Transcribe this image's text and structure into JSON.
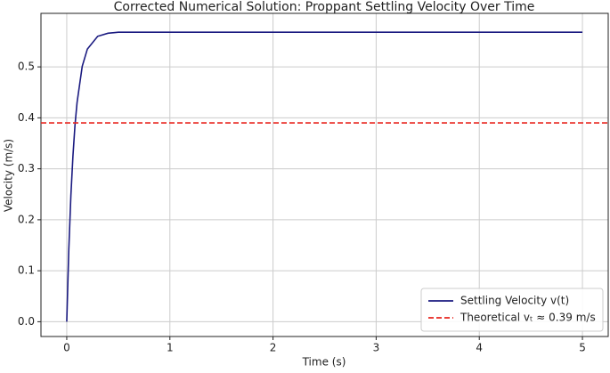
{
  "chart_data": {
    "type": "line",
    "title": "Corrected Numerical Solution: Proppant Settling Velocity Over Time",
    "x_label": "Time (s)",
    "y_label": "Velocity (m/s)",
    "x": [
      0,
      0.02,
      0.04,
      0.06,
      0.08,
      0.1,
      0.15,
      0.2,
      0.3,
      0.4,
      0.5,
      1,
      1.5,
      2,
      2.5,
      3,
      3.5,
      4,
      4.5,
      5
    ],
    "series": [
      {
        "name": "Settling Velocity v(t)",
        "color": "#1a1a80",
        "values": [
          0,
          0.142,
          0.247,
          0.325,
          0.386,
          0.43,
          0.501,
          0.535,
          0.56,
          0.566,
          0.568,
          0.568,
          0.568,
          0.568,
          0.568,
          0.568,
          0.568,
          0.568,
          0.568,
          0.568
        ]
      }
    ],
    "reference_line": {
      "name": "Theoretical vₜ ≈ 0.39 m/s",
      "color": "#e8251f",
      "value": 0.39
    },
    "xlim": [
      -0.25,
      5.25
    ],
    "ylim": [
      -0.029,
      0.605
    ],
    "xticks": [
      0,
      1,
      2,
      3,
      4,
      5
    ],
    "yticks": [
      {
        "value": 0,
        "label": "0.0"
      },
      0.1,
      0.2,
      0.3,
      0.4,
      0.5
    ],
    "grid": true,
    "legend": "lower right"
  }
}
